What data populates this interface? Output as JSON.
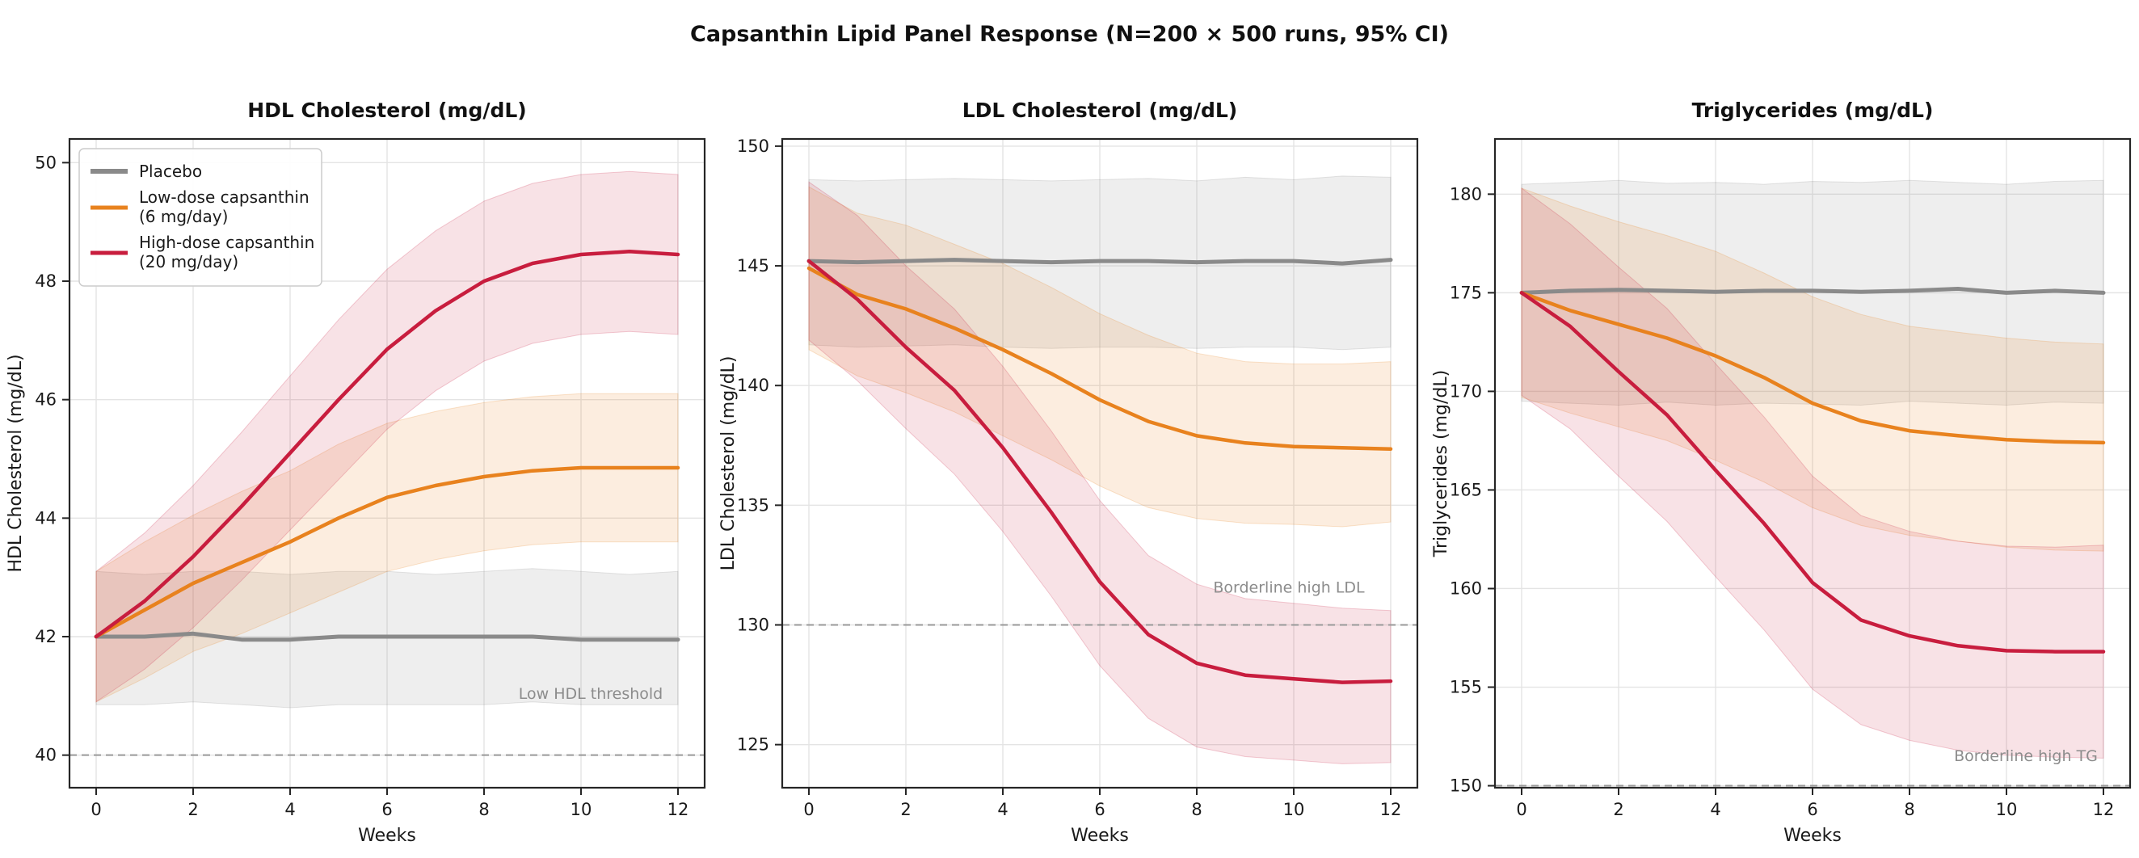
{
  "figure": {
    "suptitle": "Capsanthin Lipid Panel Response (N=200 × 500 runs, 95% CI)"
  },
  "colors": {
    "placebo": "#8a8a8a",
    "low_dose": "#e8821e",
    "high_dose": "#c81d3e",
    "threshold_line": "#999999",
    "annotation_text": "#8c8c8c",
    "grid": "#e4e4e4",
    "spine": "#262626"
  },
  "legend": {
    "items": [
      {
        "key": "placebo",
        "color": "#8a8a8a",
        "label_lines": [
          "Placebo"
        ]
      },
      {
        "key": "low_dose",
        "color": "#e8821e",
        "label_lines": [
          "Low-dose capsanthin",
          "(6 mg/day)"
        ]
      },
      {
        "key": "high_dose",
        "color": "#c81d3e",
        "label_lines": [
          "High-dose capsanthin",
          "(20 mg/day)"
        ]
      }
    ]
  },
  "chart_data": [
    {
      "id": "hdl",
      "type": "line",
      "title": "HDL Cholesterol (mg/dL)",
      "xlabel": "Weeks",
      "ylabel": "HDL Cholesterol (mg/dL)",
      "x": [
        0,
        1,
        2,
        3,
        4,
        5,
        6,
        7,
        8,
        9,
        10,
        11,
        12
      ],
      "xticks": [
        0,
        2,
        4,
        6,
        8,
        10,
        12
      ],
      "yticks": [
        40,
        42,
        44,
        46,
        48,
        50
      ],
      "xlim": [
        -0.55,
        12.55
      ],
      "ylim": [
        39.45,
        50.4
      ],
      "grid": true,
      "legend": true,
      "threshold": {
        "value": 40,
        "label": "Low HDL threshold",
        "label_x": 10.2,
        "label_y": 40.95
      },
      "series": [
        {
          "key": "placebo",
          "name": "Placebo",
          "color": "#8a8a8a",
          "lw": 5,
          "values": [
            42.0,
            42.0,
            42.05,
            41.95,
            41.95,
            42.0,
            42.0,
            42.0,
            42.0,
            42.0,
            41.95,
            41.95,
            41.95
          ],
          "ci_low": [
            40.85,
            40.85,
            40.9,
            40.85,
            40.8,
            40.85,
            40.85,
            40.85,
            40.85,
            40.9,
            40.85,
            40.85,
            40.85
          ],
          "ci_high": [
            43.1,
            43.05,
            43.1,
            43.1,
            43.05,
            43.1,
            43.1,
            43.05,
            43.1,
            43.15,
            43.1,
            43.05,
            43.1
          ]
        },
        {
          "key": "low_dose",
          "name": "Low-dose capsanthin (6 mg/day)",
          "color": "#e8821e",
          "lw": 4.5,
          "values": [
            42.0,
            42.45,
            42.9,
            43.25,
            43.6,
            44.0,
            44.35,
            44.55,
            44.7,
            44.8,
            44.85,
            44.85,
            44.85
          ],
          "ci_low": [
            40.9,
            41.3,
            41.75,
            42.05,
            42.4,
            42.75,
            43.1,
            43.3,
            43.45,
            43.55,
            43.6,
            43.6,
            43.6
          ],
          "ci_high": [
            43.1,
            43.6,
            44.05,
            44.45,
            44.8,
            45.25,
            45.6,
            45.8,
            45.95,
            46.05,
            46.1,
            46.1,
            46.1
          ]
        },
        {
          "key": "high_dose",
          "name": "High-dose capsanthin (20 mg/day)",
          "color": "#c81d3e",
          "lw": 4.5,
          "values": [
            42.0,
            42.6,
            43.35,
            44.2,
            45.1,
            46.0,
            46.85,
            47.5,
            48.0,
            48.3,
            48.45,
            48.5,
            48.45
          ],
          "ci_low": [
            40.9,
            41.45,
            42.15,
            42.95,
            43.8,
            44.65,
            45.5,
            46.15,
            46.65,
            46.95,
            47.1,
            47.15,
            47.1
          ],
          "ci_high": [
            43.1,
            43.75,
            44.55,
            45.45,
            46.4,
            47.35,
            48.2,
            48.85,
            49.35,
            49.65,
            49.8,
            49.85,
            49.8
          ]
        }
      ]
    },
    {
      "id": "ldl",
      "type": "line",
      "title": "LDL Cholesterol (mg/dL)",
      "xlabel": "Weeks",
      "ylabel": "LDL Cholesterol (mg/dL)",
      "x": [
        0,
        1,
        2,
        3,
        4,
        5,
        6,
        7,
        8,
        9,
        10,
        11,
        12
      ],
      "xticks": [
        0,
        2,
        4,
        6,
        8,
        10,
        12
      ],
      "yticks": [
        125,
        130,
        135,
        140,
        145,
        150
      ],
      "xlim": [
        -0.55,
        12.55
      ],
      "ylim": [
        123.2,
        150.3
      ],
      "grid": true,
      "legend": false,
      "threshold": {
        "value": 130,
        "label": "Borderline high LDL",
        "label_x": 9.9,
        "label_y": 131.35
      },
      "series": [
        {
          "key": "placebo",
          "name": "Placebo",
          "color": "#8a8a8a",
          "lw": 5,
          "values": [
            145.2,
            145.15,
            145.2,
            145.25,
            145.2,
            145.15,
            145.2,
            145.2,
            145.15,
            145.2,
            145.2,
            145.1,
            145.25
          ],
          "ci_low": [
            141.7,
            141.6,
            141.65,
            141.7,
            141.6,
            141.55,
            141.6,
            141.6,
            141.55,
            141.6,
            141.6,
            141.5,
            141.6
          ],
          "ci_high": [
            148.6,
            148.55,
            148.6,
            148.65,
            148.6,
            148.55,
            148.6,
            148.65,
            148.55,
            148.7,
            148.6,
            148.75,
            148.7
          ]
        },
        {
          "key": "low_dose",
          "name": "Low-dose capsanthin (6 mg/day)",
          "color": "#e8821e",
          "lw": 4.5,
          "values": [
            144.9,
            143.8,
            143.2,
            142.4,
            141.5,
            140.5,
            139.4,
            138.5,
            137.9,
            137.6,
            137.45,
            137.4,
            137.35
          ],
          "ci_low": [
            141.5,
            140.4,
            139.7,
            138.9,
            137.9,
            136.9,
            135.8,
            134.9,
            134.45,
            134.25,
            134.2,
            134.1,
            134.3
          ],
          "ci_high": [
            148.3,
            147.2,
            146.7,
            145.9,
            145.1,
            144.1,
            143.0,
            142.1,
            141.35,
            141.0,
            140.9,
            140.9,
            141.0
          ]
        },
        {
          "key": "high_dose",
          "name": "High-dose capsanthin (20 mg/day)",
          "color": "#c81d3e",
          "lw": 4.5,
          "values": [
            145.2,
            143.6,
            141.6,
            139.8,
            137.4,
            134.7,
            131.8,
            129.6,
            128.4,
            127.9,
            127.75,
            127.6,
            127.65
          ],
          "ci_low": [
            141.9,
            140.2,
            138.2,
            136.3,
            133.9,
            131.2,
            128.3,
            126.1,
            124.9,
            124.5,
            124.35,
            124.2,
            124.25
          ],
          "ci_high": [
            148.5,
            147.1,
            145.0,
            143.2,
            140.8,
            138.1,
            135.2,
            132.9,
            131.7,
            131.1,
            130.9,
            130.7,
            130.6
          ]
        }
      ]
    },
    {
      "id": "tg",
      "type": "line",
      "title": "Triglycerides (mg/dL)",
      "xlabel": "Weeks",
      "ylabel": "Triglycerides (mg/dL)",
      "x": [
        0,
        1,
        2,
        3,
        4,
        5,
        6,
        7,
        8,
        9,
        10,
        11,
        12
      ],
      "xticks": [
        0,
        2,
        4,
        6,
        8,
        10,
        12
      ],
      "yticks": [
        150,
        155,
        160,
        165,
        170,
        175,
        180
      ],
      "xlim": [
        -0.55,
        12.55
      ],
      "ylim": [
        149.9,
        182.8
      ],
      "grid": true,
      "legend": false,
      "threshold": {
        "value": 150,
        "label": "Borderline high TG",
        "label_x": 10.4,
        "label_y": 151.25
      },
      "series": [
        {
          "key": "placebo",
          "name": "Placebo",
          "color": "#8a8a8a",
          "lw": 5,
          "values": [
            175.0,
            175.1,
            175.15,
            175.1,
            175.05,
            175.1,
            175.1,
            175.05,
            175.1,
            175.2,
            175.0,
            175.1,
            175.0
          ],
          "ci_low": [
            169.5,
            169.4,
            169.3,
            169.45,
            169.3,
            169.4,
            169.35,
            169.3,
            169.5,
            169.4,
            169.3,
            169.45,
            169.4
          ],
          "ci_high": [
            180.5,
            180.6,
            180.7,
            180.55,
            180.6,
            180.5,
            180.65,
            180.6,
            180.7,
            180.6,
            180.5,
            180.65,
            180.7
          ]
        },
        {
          "key": "low_dose",
          "name": "Low-dose capsanthin (6 mg/day)",
          "color": "#e8821e",
          "lw": 4.5,
          "values": [
            175.0,
            174.1,
            173.4,
            172.7,
            171.8,
            170.7,
            169.4,
            168.5,
            168.0,
            167.75,
            167.55,
            167.45,
            167.4
          ],
          "ci_low": [
            169.7,
            168.9,
            168.2,
            167.5,
            166.5,
            165.4,
            164.1,
            163.2,
            162.7,
            162.4,
            162.1,
            161.95,
            161.9
          ],
          "ci_high": [
            180.3,
            179.4,
            178.6,
            177.9,
            177.1,
            176.0,
            174.8,
            173.9,
            173.3,
            173.0,
            172.7,
            172.5,
            172.4
          ]
        },
        {
          "key": "high_dose",
          "name": "High-dose capsanthin (20 mg/day)",
          "color": "#c81d3e",
          "lw": 4.5,
          "values": [
            175.0,
            173.3,
            171.0,
            168.8,
            166.0,
            163.3,
            160.3,
            158.4,
            157.6,
            157.1,
            156.85,
            156.8,
            156.8
          ],
          "ci_low": [
            169.8,
            168.1,
            165.7,
            163.4,
            160.6,
            157.9,
            154.9,
            153.1,
            152.3,
            151.8,
            151.55,
            151.45,
            151.4
          ],
          "ci_high": [
            180.3,
            178.5,
            176.3,
            174.2,
            171.4,
            168.7,
            165.7,
            163.7,
            162.9,
            162.4,
            162.15,
            162.1,
            162.2
          ]
        }
      ]
    }
  ]
}
